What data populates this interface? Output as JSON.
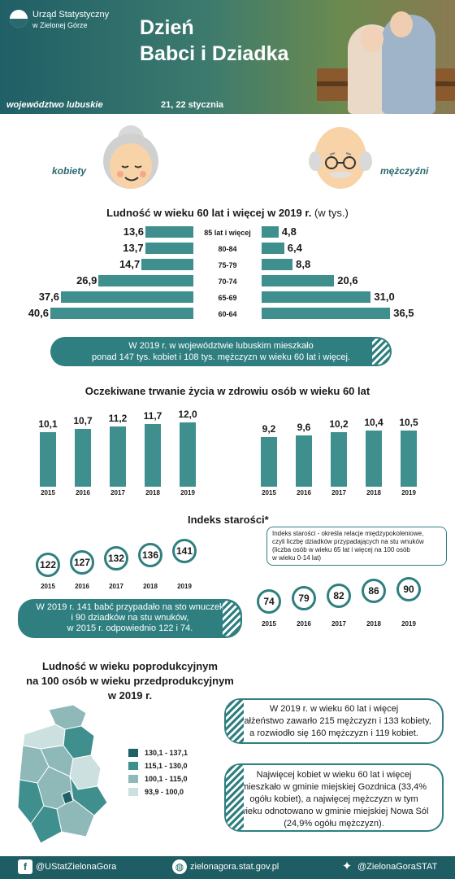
{
  "header": {
    "logo_line1": "Urząd Statystyczny",
    "logo_line2": "w Zielonej Górze",
    "title_line1": "Dzień",
    "title_line2": "Babci i Dziadka",
    "region": "województwo lubuskie",
    "dates": "21, 22 stycznia"
  },
  "faces": {
    "women_label": "kobiety",
    "men_label": "mężczyźni"
  },
  "population": {
    "title": "Ludność w wieku 60 lat i więcej w 2019 r.",
    "unit": "(w tys.)",
    "rows": [
      {
        "age": "85 lat i więcej",
        "women": 13.6,
        "men": 4.8,
        "women_label": "13,6",
        "men_label": "4,8"
      },
      {
        "age": "80-84",
        "women": 13.7,
        "men": 6.4,
        "women_label": "13,7",
        "men_label": "6,4"
      },
      {
        "age": "75-79",
        "women": 14.7,
        "men": 8.8,
        "women_label": "14,7",
        "men_label": "8,8"
      },
      {
        "age": "70-74",
        "women": 26.9,
        "men": 20.6,
        "women_label": "26,9",
        "men_label": "20,6"
      },
      {
        "age": "65-69",
        "women": 37.6,
        "men": 31.0,
        "women_label": "37,6",
        "men_label": "31,0"
      },
      {
        "age": "60-64",
        "women": 40.6,
        "men": 36.5,
        "women_label": "40,6",
        "men_label": "36,5"
      }
    ],
    "note_line1": "W 2019 r. w województwie lubuskim mieszkało",
    "note_line2": "ponad 147 tys. kobiet i 108 tys. mężczyzn w wieku 60 lat i więcej."
  },
  "life": {
    "title": "Oczekiwane trwanie życia w zdrowiu osób w wieku 60 lat",
    "years": [
      "2015",
      "2016",
      "2017",
      "2018",
      "2019"
    ],
    "women": [
      10.1,
      10.7,
      11.2,
      11.7,
      12.0
    ],
    "women_labels": [
      "10,1",
      "10,7",
      "11,2",
      "11,7",
      "12,0"
    ],
    "men": [
      9.2,
      9.6,
      10.2,
      10.4,
      10.5
    ],
    "men_labels": [
      "9,2",
      "9,6",
      "10,2",
      "10,4",
      "10,5"
    ]
  },
  "aging": {
    "title": "Indeks starości*",
    "footnote_l1": "Indeks starości - określa relacje międzypokoleniowe,",
    "footnote_l2": "czyli liczbę dziadków przypadających na stu wnuków",
    "footnote_l3": "(liczba osób w wieku 65 lat i więcej na 100 osób",
    "footnote_l4": "w wieku 0-14 lat)",
    "years": [
      "2015",
      "2016",
      "2017",
      "2018",
      "2019"
    ],
    "women": [
      "122",
      "127",
      "132",
      "136",
      "141"
    ],
    "men": [
      "74",
      "79",
      "82",
      "86",
      "90"
    ],
    "note_l1": "W 2019 r. 141 babć przypadało na sto wnuczek",
    "note_l2": "i 90 dziadków na stu wnuków,",
    "note_l3": "w 2015 r. odpowiednio 122 i 74."
  },
  "map": {
    "title_l1": "Ludność w wieku poprodukcyjnym",
    "title_l2": "na 100 osób w wieku przedprodukcyjnym",
    "title_l3": "w 2019 r.",
    "legend": [
      {
        "label": "130,1 - 137,1",
        "color": "#1f5f66"
      },
      {
        "label": "115,1 - 130,0",
        "color": "#3f8f8f"
      },
      {
        "label": "100,1 - 115,0",
        "color": "#8fb8b8"
      },
      {
        "label": "93,9 - 100,0",
        "color": "#cde0e0"
      }
    ]
  },
  "marriage": {
    "l1": "W 2019 r. w wieku 60 lat i więcej",
    "l2": "małżeństwo zawarło 215 mężczyzn i 133 kobiety,",
    "l3": "a rozwiodło się 160 mężczyzn i 119 kobiet."
  },
  "gmina": {
    "l1": "Najwięcej kobiet w wieku 60 lat i więcej",
    "l2": "mieszkało w gminie miejskiej Gozdnica (33,4%",
    "l3": "ogółu kobiet), a najwięcej mężczyzn w tym",
    "l4": "wieku odnotowano w gminie miejskiej Nowa Sól",
    "l5": "(24,9% ogółu mężczyzn)."
  },
  "footer": {
    "facebook": "@UStatZielonaGora",
    "website": "zielonagora.stat.gov.pl",
    "twitter": "@ZielonaGoraSTAT"
  },
  "icons": [
    "facebook-icon",
    "globe-icon",
    "twitter-icon"
  ]
}
